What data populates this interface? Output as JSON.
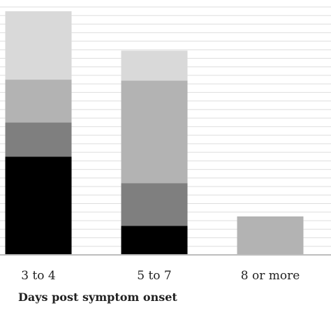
{
  "chart_data": {
    "type": "bar",
    "stacked": true,
    "title": "",
    "xlabel": "Days post symptom onset",
    "ylabel": "",
    "categories": [
      "3 to 4",
      "5 to 7",
      "8 or more"
    ],
    "ylim": [
      0,
      29
    ],
    "grid": true,
    "gridlines": [
      1,
      2,
      3,
      4,
      5,
      6,
      7,
      8,
      9,
      10,
      11,
      12,
      13,
      14,
      15,
      16,
      17,
      18,
      19,
      20,
      21,
      22,
      23,
      24,
      25,
      26,
      27,
      28,
      29
    ],
    "series": [
      {
        "color": "#000000",
        "values": [
          11.5,
          3.4,
          0
        ]
      },
      {
        "color": "#7f7f7f",
        "values": [
          4,
          5,
          0
        ]
      },
      {
        "color": "#b3b3b3",
        "values": [
          5,
          12,
          4.5
        ]
      },
      {
        "color": "#d9d9d9",
        "values": [
          8,
          3.5,
          0
        ]
      }
    ]
  }
}
